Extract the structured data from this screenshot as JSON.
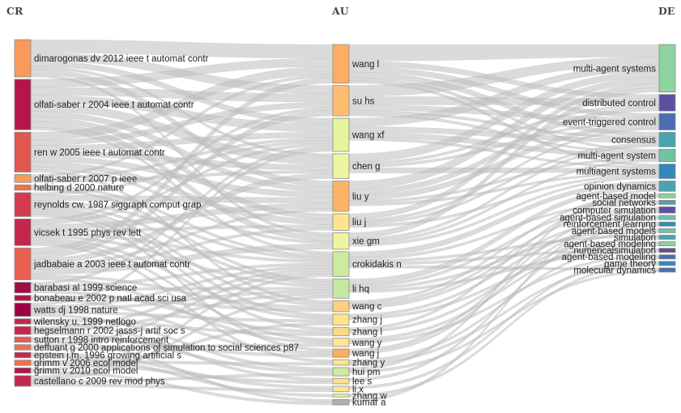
{
  "columns": [
    {
      "key": "CR",
      "title": "CR"
    },
    {
      "key": "AU",
      "title": "AU"
    },
    {
      "key": "DE",
      "title": "DE"
    }
  ],
  "nodes": {
    "CR": [
      {
        "label": "dimarogonas dv 2012 ieee t automat contr",
        "color": "#f99a5a"
      },
      {
        "label": "olfati-saber r 2004 ieee t automat contr",
        "color": "#b5154a"
      },
      {
        "label": "ren w 2005 ieee t automat contr",
        "color": "#e25650"
      },
      {
        "label": "olfati-saber r 2007 p ieee",
        "color": "#f99a5a"
      },
      {
        "label": "helbing d 2000 nature",
        "color": "#f2704f"
      },
      {
        "label": "reynolds cw. 1987 siggraph comput grap",
        "color": "#d53a4f"
      },
      {
        "label": "vicsek t 1995 phys rev lett",
        "color": "#c4264c"
      },
      {
        "label": "jadbabaie a 2003 ieee t automat contr",
        "color": "#ea5f4e"
      },
      {
        "label": "barabasi al 1999 science",
        "color": "#a00e47"
      },
      {
        "label": "bonabeau e 2002 p natl acad sci usa",
        "color": "#b5154a"
      },
      {
        "label": "watts dj 1998 nature",
        "color": "#9e0142"
      },
      {
        "label": "wilensky u. 1999 netlogo",
        "color": "#c4264c"
      },
      {
        "label": "hegselmann r 2002 jasss-j artif soc s",
        "color": "#c4264c"
      },
      {
        "label": "sutton r 1998 intro reinforcement",
        "color": "#e85a4f"
      },
      {
        "label": "deffuant g 2000 applications of simulation to social sciences p87",
        "color": "#f2704f"
      },
      {
        "label": "epstein j.m. 1996 growing artificial s",
        "color": "#c4264c"
      },
      {
        "label": "grimm v 2006 ecol model",
        "color": "#f2704f"
      },
      {
        "label": "grimm v 2010 ecol model",
        "color": "#b5154a"
      },
      {
        "label": "castellano c 2009 rev mod phys",
        "color": "#c4264c"
      }
    ],
    "AU": [
      {
        "label": "wang l",
        "color": "#fdae61"
      },
      {
        "label": "su hs",
        "color": "#fdbe6f"
      },
      {
        "label": "wang xf",
        "color": "#e8f59c"
      },
      {
        "label": "chen g",
        "color": "#eef5a0"
      },
      {
        "label": "liu y",
        "color": "#fdb365"
      },
      {
        "label": "liu j",
        "color": "#fde48e"
      },
      {
        "label": "xie gm",
        "color": "#eef5a0"
      },
      {
        "label": "crokidakis n",
        "color": "#cdeba0"
      },
      {
        "label": "li hq",
        "color": "#c3e8a0"
      },
      {
        "label": "wang c",
        "color": "#fdd07d"
      },
      {
        "label": "zhang j",
        "color": "#fde48e"
      },
      {
        "label": "zhang l",
        "color": "#fdd885"
      },
      {
        "label": "wang y",
        "color": "#fde890"
      },
      {
        "label": "wang j",
        "color": "#fdae61"
      },
      {
        "label": "zhang y",
        "color": "#fde48e"
      },
      {
        "label": "hui pm",
        "color": "#cdeba0"
      },
      {
        "label": "lee s",
        "color": "#fde08a"
      },
      {
        "label": "li x",
        "color": "#fde890"
      },
      {
        "label": "zhang w",
        "color": "#e6f49a"
      },
      {
        "label": "kumar a",
        "color": "#b0b0b0"
      }
    ],
    "DE": [
      {
        "label": "multi-agent systems",
        "color": "#8ed3a1"
      },
      {
        "label": "distributed control",
        "color": "#5e4fa2"
      },
      {
        "label": "event-triggered control",
        "color": "#4a6fb0"
      },
      {
        "label": "consensus",
        "color": "#4aa3b0"
      },
      {
        "label": "multi-agent system",
        "color": "#6ec4a4"
      },
      {
        "label": "multiagent systems",
        "color": "#3288bd"
      },
      {
        "label": "opinion dynamics",
        "color": "#4aa3b0"
      },
      {
        "label": "agent-based model",
        "color": "#8ed3a1"
      },
      {
        "label": "social networks",
        "color": "#4aa3b0"
      },
      {
        "label": "computer simulation",
        "color": "#5e4fa2"
      },
      {
        "label": "agent-based simulation",
        "color": "#6ec4a4"
      },
      {
        "label": "reinforcement learning",
        "color": "#3288bd"
      },
      {
        "label": "agent-based models",
        "color": "#6ec4a4"
      },
      {
        "label": "simulation",
        "color": "#4aa3b0"
      },
      {
        "label": "agent-based modeling",
        "color": "#8ed3a1"
      },
      {
        "label": "numericalsimulation",
        "color": "#5e4fa2"
      },
      {
        "label": "agent-based modelling",
        "color": "#4a6fb0"
      },
      {
        "label": "game theory",
        "color": "#3288bd"
      },
      {
        "label": "molecular dynamics",
        "color": "#4a6fb0"
      }
    ]
  },
  "links_cr_au": [
    [
      0,
      0,
      5
    ],
    [
      0,
      1,
      3
    ],
    [
      0,
      2,
      2
    ],
    [
      0,
      3,
      1
    ],
    [
      0,
      4,
      2
    ],
    [
      0,
      6,
      1
    ],
    [
      1,
      0,
      3
    ],
    [
      1,
      1,
      3
    ],
    [
      1,
      2,
      3
    ],
    [
      1,
      3,
      3
    ],
    [
      1,
      4,
      2
    ],
    [
      1,
      5,
      2
    ],
    [
      1,
      6,
      2
    ],
    [
      1,
      7,
      1
    ],
    [
      2,
      0,
      3
    ],
    [
      2,
      1,
      2
    ],
    [
      2,
      2,
      2
    ],
    [
      2,
      3,
      2
    ],
    [
      2,
      4,
      2
    ],
    [
      2,
      5,
      2
    ],
    [
      2,
      6,
      1
    ],
    [
      2,
      9,
      1
    ],
    [
      3,
      0,
      1
    ],
    [
      3,
      2,
      1
    ],
    [
      3,
      3,
      1
    ],
    [
      4,
      7,
      1
    ],
    [
      4,
      8,
      1
    ],
    [
      5,
      2,
      1
    ],
    [
      5,
      4,
      2
    ],
    [
      5,
      7,
      1
    ],
    [
      5,
      8,
      1
    ],
    [
      5,
      9,
      1
    ],
    [
      5,
      10,
      1
    ],
    [
      5,
      11,
      1
    ],
    [
      5,
      13,
      1
    ],
    [
      6,
      1,
      1
    ],
    [
      6,
      2,
      1
    ],
    [
      6,
      4,
      2
    ],
    [
      6,
      5,
      1
    ],
    [
      6,
      7,
      1
    ],
    [
      6,
      8,
      1
    ],
    [
      6,
      10,
      1
    ],
    [
      6,
      12,
      1
    ],
    [
      6,
      14,
      1
    ],
    [
      7,
      0,
      2
    ],
    [
      7,
      1,
      2
    ],
    [
      7,
      3,
      2
    ],
    [
      7,
      4,
      1
    ],
    [
      7,
      5,
      1
    ],
    [
      7,
      6,
      2
    ],
    [
      7,
      9,
      1
    ],
    [
      7,
      12,
      1
    ],
    [
      8,
      2,
      1
    ],
    [
      8,
      7,
      1
    ],
    [
      8,
      8,
      1
    ],
    [
      8,
      11,
      1
    ],
    [
      9,
      9,
      1
    ],
    [
      9,
      13,
      1
    ],
    [
      10,
      2,
      1
    ],
    [
      10,
      7,
      1
    ],
    [
      10,
      8,
      1
    ],
    [
      10,
      10,
      1
    ],
    [
      10,
      15,
      1
    ],
    [
      11,
      11,
      1
    ],
    [
      11,
      16,
      1
    ],
    [
      12,
      7,
      1
    ],
    [
      12,
      8,
      1
    ],
    [
      12,
      15,
      1
    ],
    [
      13,
      13,
      1
    ],
    [
      13,
      19,
      1
    ],
    [
      14,
      7,
      1
    ],
    [
      14,
      12,
      1
    ],
    [
      15,
      17,
      1
    ],
    [
      15,
      18,
      1
    ],
    [
      16,
      14,
      1
    ],
    [
      16,
      16,
      1
    ],
    [
      17,
      10,
      1
    ],
    [
      17,
      19,
      1
    ],
    [
      18,
      7,
      1
    ],
    [
      18,
      8,
      1
    ],
    [
      18,
      15,
      1
    ],
    [
      18,
      17,
      1
    ]
  ],
  "links_au_de": [
    [
      0,
      0,
      6
    ],
    [
      0,
      1,
      2
    ],
    [
      0,
      2,
      2
    ],
    [
      0,
      3,
      2
    ],
    [
      0,
      4,
      1
    ],
    [
      0,
      5,
      1
    ],
    [
      1,
      0,
      4
    ],
    [
      1,
      1,
      3
    ],
    [
      1,
      2,
      2
    ],
    [
      1,
      3,
      1
    ],
    [
      1,
      4,
      1
    ],
    [
      2,
      0,
      3
    ],
    [
      2,
      3,
      2
    ],
    [
      2,
      4,
      2
    ],
    [
      2,
      5,
      1
    ],
    [
      3,
      0,
      3
    ],
    [
      3,
      1,
      1
    ],
    [
      3,
      2,
      1
    ],
    [
      3,
      5,
      2
    ],
    [
      4,
      0,
      3
    ],
    [
      4,
      1,
      2
    ],
    [
      4,
      2,
      2
    ],
    [
      4,
      4,
      1
    ],
    [
      4,
      5,
      1
    ],
    [
      5,
      0,
      2
    ],
    [
      5,
      2,
      1
    ],
    [
      5,
      3,
      1
    ],
    [
      5,
      5,
      1
    ],
    [
      6,
      0,
      2
    ],
    [
      6,
      3,
      1
    ],
    [
      6,
      4,
      1
    ],
    [
      6,
      5,
      1
    ],
    [
      7,
      6,
      2
    ],
    [
      7,
      8,
      1
    ],
    [
      7,
      13,
      1
    ],
    [
      7,
      15,
      1
    ],
    [
      7,
      18,
      1
    ],
    [
      8,
      6,
      2
    ],
    [
      8,
      8,
      1
    ],
    [
      8,
      12,
      1
    ],
    [
      8,
      15,
      1
    ],
    [
      9,
      7,
      1
    ],
    [
      9,
      9,
      1
    ],
    [
      9,
      10,
      1
    ],
    [
      10,
      11,
      1
    ],
    [
      10,
      14,
      1
    ],
    [
      11,
      7,
      1
    ],
    [
      11,
      12,
      1
    ],
    [
      12,
      13,
      1
    ],
    [
      12,
      16,
      1
    ],
    [
      13,
      9,
      1
    ],
    [
      13,
      10,
      1
    ],
    [
      14,
      14,
      1
    ],
    [
      14,
      17,
      1
    ],
    [
      15,
      6,
      1
    ],
    [
      15,
      18,
      1
    ],
    [
      16,
      11,
      1
    ],
    [
      17,
      16,
      1
    ],
    [
      18,
      17,
      1
    ],
    [
      19,
      9,
      1
    ]
  ]
}
